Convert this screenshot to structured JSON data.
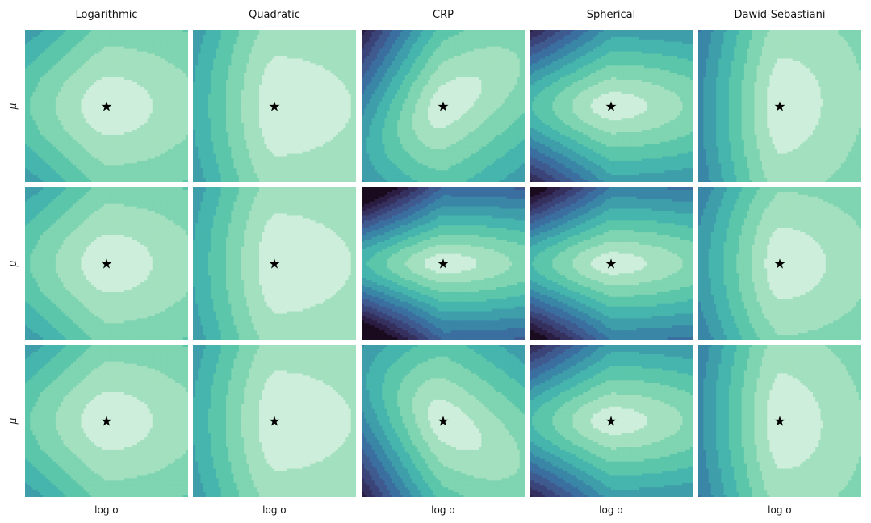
{
  "chart_data": {
    "type": "heatmap",
    "subtype": "filled-contour-grid",
    "grid": {
      "rows": 3,
      "cols": 5
    },
    "column_titles": [
      "Logarithmic",
      "Quadratic",
      "CRP",
      "Spherical",
      "Dawid-Sebastiani"
    ],
    "xlabel": "log σ",
    "ylabel": "μ",
    "marker": {
      "symbol": "★",
      "meaning": "optimum"
    },
    "colormap": [
      "#1a0b1e",
      "#2b1d42",
      "#35305e",
      "#3b4478",
      "#3e5a8f",
      "#3b6fa0",
      "#3a86a7",
      "#3e9eaa",
      "#46b5ad",
      "#5cc6ab",
      "#7fd4b1",
      "#a3e0bf",
      "#cceedb"
    ],
    "panels": [
      {
        "row": 0,
        "col": 0,
        "scoring_rule": "Logarithmic",
        "optimum": [
          0.5,
          0.5
        ],
        "skew": 0.0,
        "vertical_stretch": 1.25,
        "level_scale": 1.0,
        "steepness": 1.0
      },
      {
        "row": 0,
        "col": 1,
        "scoring_rule": "Quadratic",
        "optimum": [
          0.5,
          0.5
        ],
        "skew": 0.0,
        "vertical_stretch": 1.25,
        "level_scale": 0.6,
        "steepness": 2.6
      },
      {
        "row": 0,
        "col": 2,
        "scoring_rule": "CRP",
        "optimum": [
          0.5,
          0.5
        ],
        "skew": 0.55,
        "vertical_stretch": 1.1,
        "level_scale": 1.2,
        "steepness": 1.4
      },
      {
        "row": 0,
        "col": 3,
        "scoring_rule": "Spherical",
        "optimum": [
          0.5,
          0.5
        ],
        "skew": 0.0,
        "vertical_stretch": 0.75,
        "level_scale": 1.3,
        "steepness": 1.0
      },
      {
        "row": 0,
        "col": 4,
        "scoring_rule": "Dawid-Sebastiani",
        "optimum": [
          0.5,
          0.5
        ],
        "skew": 0.1,
        "vertical_stretch": 2.2,
        "level_scale": 1.1,
        "steepness": 1.8
      },
      {
        "row": 1,
        "col": 0,
        "scoring_rule": "Logarithmic",
        "optimum": [
          0.5,
          0.5
        ],
        "skew": 0.0,
        "vertical_stretch": 1.25,
        "level_scale": 1.0,
        "steepness": 1.0
      },
      {
        "row": 1,
        "col": 1,
        "scoring_rule": "Quadratic",
        "optimum": [
          0.5,
          0.5
        ],
        "skew": 0.0,
        "vertical_stretch": 1.25,
        "level_scale": 0.6,
        "steepness": 2.6
      },
      {
        "row": 1,
        "col": 2,
        "scoring_rule": "CRP",
        "optimum": [
          0.5,
          0.5
        ],
        "skew": 0.0,
        "vertical_stretch": 0.55,
        "level_scale": 1.35,
        "steepness": 1.0
      },
      {
        "row": 1,
        "col": 3,
        "scoring_rule": "Spherical",
        "optimum": [
          0.5,
          0.5
        ],
        "skew": 0.0,
        "vertical_stretch": 0.6,
        "level_scale": 1.3,
        "steepness": 1.0
      },
      {
        "row": 1,
        "col": 4,
        "scoring_rule": "Dawid-Sebastiani",
        "optimum": [
          0.5,
          0.5
        ],
        "skew": 0.0,
        "vertical_stretch": 1.5,
        "level_scale": 1.0,
        "steepness": 1.8
      },
      {
        "row": 2,
        "col": 0,
        "scoring_rule": "Logarithmic",
        "optimum": [
          0.5,
          0.5
        ],
        "skew": 0.0,
        "vertical_stretch": 1.25,
        "level_scale": 1.0,
        "steepness": 1.0
      },
      {
        "row": 2,
        "col": 1,
        "scoring_rule": "Quadratic",
        "optimum": [
          0.5,
          0.5
        ],
        "skew": 0.0,
        "vertical_stretch": 1.25,
        "level_scale": 0.6,
        "steepness": 2.6
      },
      {
        "row": 2,
        "col": 2,
        "scoring_rule": "CRP",
        "optimum": [
          0.5,
          0.5
        ],
        "skew": -0.55,
        "vertical_stretch": 1.1,
        "level_scale": 1.2,
        "steepness": 1.4
      },
      {
        "row": 2,
        "col": 3,
        "scoring_rule": "Spherical",
        "optimum": [
          0.5,
          0.5
        ],
        "skew": 0.0,
        "vertical_stretch": 0.75,
        "level_scale": 1.3,
        "steepness": 1.0
      },
      {
        "row": 2,
        "col": 4,
        "scoring_rule": "Dawid-Sebastiani",
        "optimum": [
          0.5,
          0.5
        ],
        "skew": -0.1,
        "vertical_stretch": 2.2,
        "level_scale": 1.1,
        "steepness": 1.8
      }
    ]
  }
}
